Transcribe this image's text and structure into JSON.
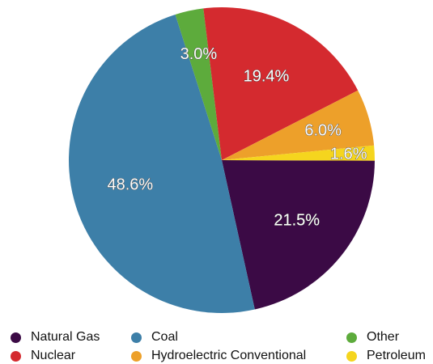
{
  "chart_data": {
    "type": "pie",
    "title": "",
    "slices": [
      {
        "name": "Natural Gas",
        "value": 21.5,
        "label": "21.5%",
        "color": "#3b0a45"
      },
      {
        "name": "Coal",
        "value": 48.6,
        "label": "48.6%",
        "color": "#3d7fa8"
      },
      {
        "name": "Other",
        "value": 3.0,
        "label": "3.0%",
        "color": "#5dab3c"
      },
      {
        "name": "Nuclear",
        "value": 19.4,
        "label": "19.4%",
        "color": "#d42a2f"
      },
      {
        "name": "Hydroelectric Conventional",
        "value": 6.0,
        "label": "6.0%",
        "color": "#eda02a"
      },
      {
        "name": "Petroleum",
        "value": 1.6,
        "label": "1.6%",
        "color": "#f5d51e"
      }
    ],
    "legend": {
      "placement": "bottom",
      "entries": [
        "Natural Gas",
        "Coal",
        "Other",
        "Nuclear",
        "Hydroelectric Conventional",
        "Petroleum"
      ]
    }
  }
}
